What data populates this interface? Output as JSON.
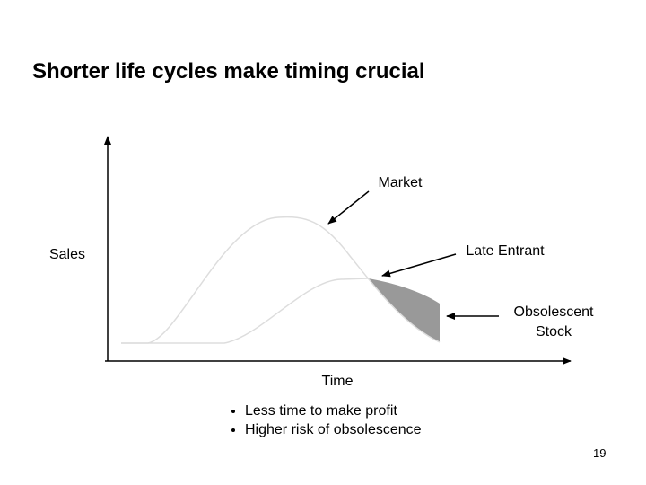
{
  "title": "Shorter life cycles make timing crucial",
  "diagram": {
    "y_axis_label": "Sales",
    "x_axis_label": "Time",
    "labels": {
      "market": "Market",
      "late_entrant": "Late Entrant",
      "obsolescent_stock": [
        "Obsolescent",
        "Stock"
      ]
    }
  },
  "bullets": [
    "Less time to make profit",
    "Higher risk of obsolescence"
  ],
  "page_number": "19"
}
